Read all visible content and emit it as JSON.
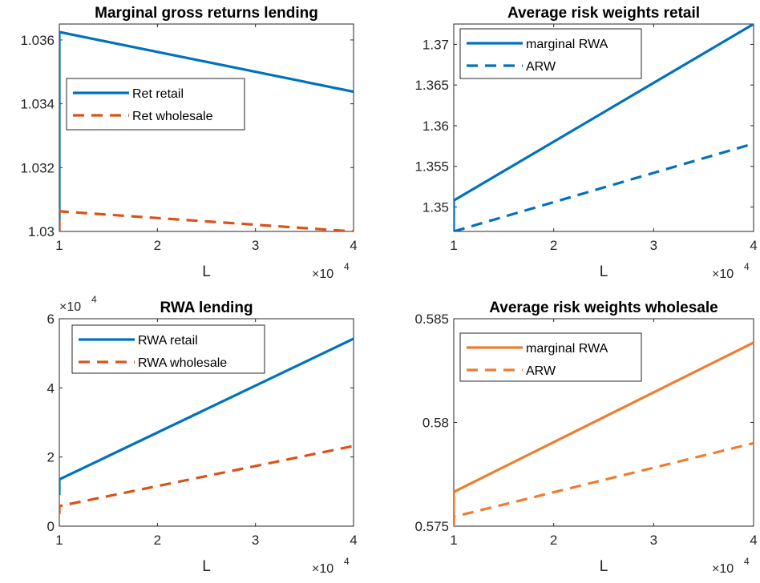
{
  "chart_data": [
    {
      "type": "line",
      "title": "Marginal gross returns lending",
      "xlabel": "L",
      "x_exponent": "×10",
      "x_exponent_power": "4",
      "y_exponent": "",
      "y_exponent_power": "",
      "xlim": [
        1,
        4
      ],
      "ylim": [
        1.03,
        1.0365
      ],
      "xticks": [
        1,
        2,
        3,
        4
      ],
      "xtick_labels": [
        "1",
        "2",
        "3",
        "4"
      ],
      "yticks": [
        1.03,
        1.032,
        1.034,
        1.036
      ],
      "ytick_labels": [
        "1.03",
        "1.032",
        "1.034",
        "1.036"
      ],
      "legend_location": "upper-left",
      "series": [
        {
          "name": "Ret retail",
          "color": "#0072BD",
          "dash": "solid",
          "x": [
            1,
            1,
            4
          ],
          "y": [
            1.03,
            1.03625,
            1.03438
          ]
        },
        {
          "name": "Ret wholesale",
          "color": "#D95319",
          "dash": "dashed",
          "x": [
            1,
            1,
            4
          ],
          "y": [
            1.03,
            1.03063,
            1.03
          ]
        }
      ]
    },
    {
      "type": "line",
      "title": "Average risk weights retail",
      "xlabel": "L",
      "x_exponent": "×10",
      "x_exponent_power": "4",
      "y_exponent": "",
      "y_exponent_power": "",
      "xlim": [
        1,
        4
      ],
      "ylim": [
        1.347,
        1.3725
      ],
      "xticks": [
        1,
        2,
        3,
        4
      ],
      "xtick_labels": [
        "1",
        "2",
        "3",
        "4"
      ],
      "yticks": [
        1.35,
        1.355,
        1.36,
        1.365,
        1.37
      ],
      "ytick_labels": [
        "1.35",
        "1.355",
        "1.36",
        "1.365",
        "1.37"
      ],
      "legend_location": "upper-left",
      "series": [
        {
          "name": "marginal RWA",
          "color": "#0072BD",
          "dash": "solid",
          "x": [
            1,
            1,
            4
          ],
          "y": [
            1.347,
            1.3508,
            1.3725
          ]
        },
        {
          "name": "ARW",
          "color": "#0072BD",
          "dash": "dashed",
          "x": [
            1,
            4
          ],
          "y": [
            1.347,
            1.3578
          ]
        }
      ]
    },
    {
      "type": "line",
      "title": "RWA lending",
      "xlabel": "L",
      "x_exponent": "×10",
      "x_exponent_power": "4",
      "y_exponent": "×10",
      "y_exponent_power": "4",
      "xlim": [
        1,
        4
      ],
      "ylim": [
        0,
        6
      ],
      "xticks": [
        1,
        2,
        3,
        4
      ],
      "xtick_labels": [
        "1",
        "2",
        "3",
        "4"
      ],
      "yticks": [
        0,
        2,
        4,
        6
      ],
      "ytick_labels": [
        "0",
        "2",
        "4",
        "6"
      ],
      "legend_location": "upper-left",
      "series": [
        {
          "name": "RWA retail",
          "color": "#0072BD",
          "dash": "solid",
          "x": [
            1,
            1,
            4
          ],
          "y": [
            0.9,
            1.35,
            5.42
          ]
        },
        {
          "name": "RWA wholesale",
          "color": "#D95319",
          "dash": "dashed",
          "x": [
            1,
            1,
            4
          ],
          "y": [
            0.35,
            0.58,
            2.32
          ]
        }
      ]
    },
    {
      "type": "line",
      "title": "Average risk weights wholesale",
      "xlabel": "L",
      "x_exponent": "×10",
      "x_exponent_power": "4",
      "y_exponent": "",
      "y_exponent_power": "",
      "xlim": [
        1,
        4
      ],
      "ylim": [
        0.575,
        0.585
      ],
      "xticks": [
        1,
        2,
        3,
        4
      ],
      "xtick_labels": [
        "1",
        "2",
        "3",
        "4"
      ],
      "yticks": [
        0.575,
        0.58,
        0.585
      ],
      "ytick_labels": [
        "0.575",
        "0.58",
        "0.585"
      ],
      "legend_location": "upper-left",
      "series": [
        {
          "name": "marginal RWA",
          "color": "#ED7D31",
          "dash": "solid",
          "x": [
            1,
            1,
            4
          ],
          "y": [
            0.575,
            0.57665,
            0.58385
          ]
        },
        {
          "name": "ARW",
          "color": "#ED7D31",
          "dash": "dashed",
          "x": [
            1,
            1,
            4
          ],
          "y": [
            0.575,
            0.57545,
            0.579
          ]
        }
      ]
    }
  ]
}
